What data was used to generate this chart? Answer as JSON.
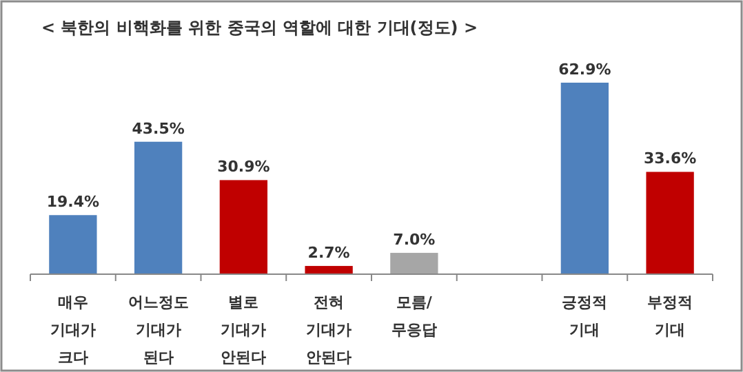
{
  "chart_data": {
    "type": "bar",
    "title": "< 북한의 비핵화를 위한 중국의 역할에 대한 기대(정도) >",
    "categories": [
      "매우 기대가 크다",
      "어느정도 기대가 된다",
      "별로 기대가 안된다",
      "전혀 기대가 안된다",
      "모름/ 무응답",
      null,
      "긍정적 기대",
      "부정적 기대"
    ],
    "values": [
      19.4,
      43.5,
      30.9,
      2.7,
      7.0,
      null,
      62.9,
      33.6
    ],
    "colors": [
      "#4f81bd",
      "#4f81bd",
      "#c00000",
      "#c00000",
      "#a6a6a6",
      null,
      "#4f81bd",
      "#c00000"
    ],
    "value_labels": [
      "19.4%",
      "43.5%",
      "30.9%",
      "2.7%",
      "7.0%",
      null,
      "62.9%",
      "33.6%"
    ]
  }
}
